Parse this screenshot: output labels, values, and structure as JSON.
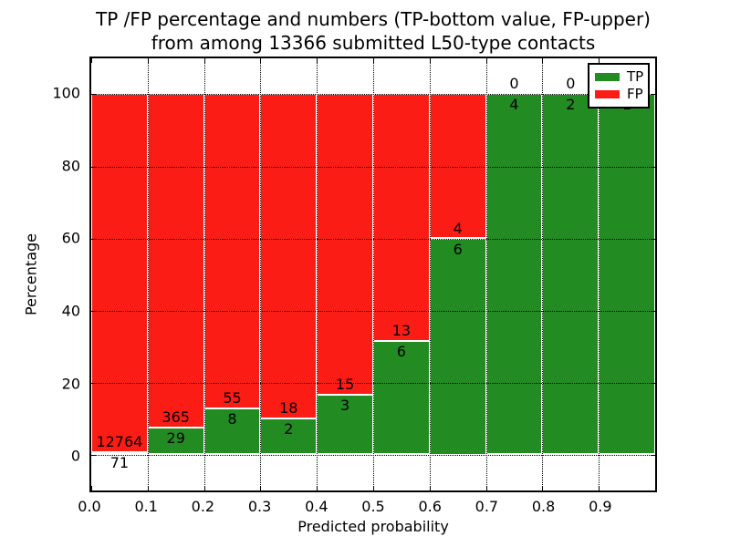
{
  "figure": {
    "background": "#ffffff",
    "title_line1": "TP /FP percentage and numbers (TP-bottom value, FP-upper)",
    "title_line2": "from among 13366 submitted L50-type contacts"
  },
  "axes": {
    "xlabel": "Predicted probability",
    "ylabel": "Percentage",
    "xtick_labels": [
      "0.0",
      "0.1",
      "0.2",
      "0.3",
      "0.4",
      "0.5",
      "0.6",
      "0.7",
      "0.8",
      "0.9"
    ],
    "ytick_labels": [
      "0",
      "20",
      "40",
      "60",
      "80",
      "100"
    ],
    "ytick_values": [
      0,
      20,
      40,
      60,
      80,
      100
    ],
    "xlim": [
      0.0,
      1.0
    ],
    "ylim": [
      -10,
      110
    ],
    "grid_linestyle": "dotted"
  },
  "legend": {
    "items": [
      {
        "label": "TP",
        "color": "#228b22"
      },
      {
        "label": "FP",
        "color": "#fb1d15"
      }
    ],
    "position": "upper right"
  },
  "chart_data": {
    "type": "bar",
    "stacked": true,
    "title": "TP /FP percentage and numbers (TP-bottom value, FP-upper) from among 13366 submitted L50-type contacts",
    "xlabel": "Predicted probability",
    "ylabel": "Percentage",
    "total_contacts": 13366,
    "bins": [
      "0.0-0.1",
      "0.1-0.2",
      "0.2-0.3",
      "0.3-0.4",
      "0.4-0.5",
      "0.5-0.6",
      "0.6-0.7",
      "0.7-0.8",
      "0.8-0.9",
      "0.9-1.0"
    ],
    "series": [
      {
        "name": "TP",
        "color": "#228b22",
        "counts": [
          71,
          29,
          8,
          2,
          3,
          6,
          6,
          4,
          2,
          1
        ],
        "percent": [
          0.553,
          7.36,
          12.698,
          10.0,
          16.667,
          31.579,
          60.0,
          100.0,
          100.0,
          100.0
        ]
      },
      {
        "name": "FP",
        "color": "#fb1d15",
        "counts": [
          12764,
          365,
          55,
          18,
          15,
          13,
          4,
          0,
          0,
          0
        ],
        "percent": [
          99.447,
          92.64,
          87.302,
          90.0,
          83.333,
          68.421,
          40.0,
          0.0,
          0.0,
          0.0
        ]
      }
    ],
    "ylim": [
      -10,
      110
    ],
    "grid": true,
    "legend_position": "upper right",
    "annotation_note": "FP count drawn above TP-segment top, TP count drawn below it"
  }
}
